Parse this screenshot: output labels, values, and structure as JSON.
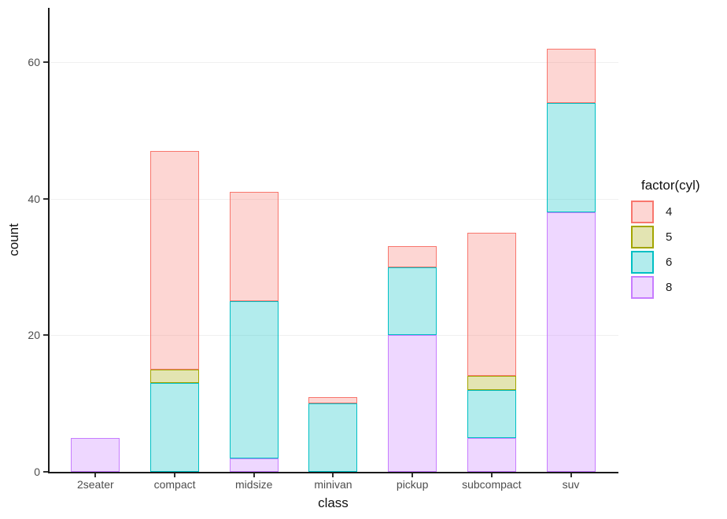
{
  "chart_data": {
    "type": "bar",
    "stacked": true,
    "title": "",
    "xlabel": "class",
    "ylabel": "count",
    "categories": [
      "2seater",
      "compact",
      "midsize",
      "minivan",
      "pickup",
      "subcompact",
      "suv"
    ],
    "series": [
      {
        "name": "4",
        "color": "#F8766D",
        "values": [
          0,
          32,
          16,
          1,
          3,
          21,
          8
        ]
      },
      {
        "name": "5",
        "color": "#A3A500",
        "values": [
          0,
          2,
          0,
          0,
          0,
          2,
          0
        ]
      },
      {
        "name": "6",
        "color": "#00BFC4",
        "values": [
          0,
          13,
          23,
          10,
          10,
          7,
          16
        ]
      },
      {
        "name": "8",
        "color": "#C77CFF",
        "values": [
          5,
          0,
          2,
          0,
          20,
          5,
          38
        ]
      }
    ],
    "stack_order_bottom_to_top": [
      "8",
      "6",
      "5",
      "4"
    ],
    "totals": [
      5,
      47,
      41,
      11,
      33,
      35,
      62
    ],
    "fill_alpha": 0.3,
    "y_ticks": [
      0,
      20,
      40,
      60
    ],
    "ylim": [
      0,
      68
    ],
    "grid": "horizontal-major-only",
    "legend": {
      "title": "factor(cyl)",
      "position": "right",
      "entries": [
        "4",
        "5",
        "6",
        "8"
      ]
    }
  }
}
